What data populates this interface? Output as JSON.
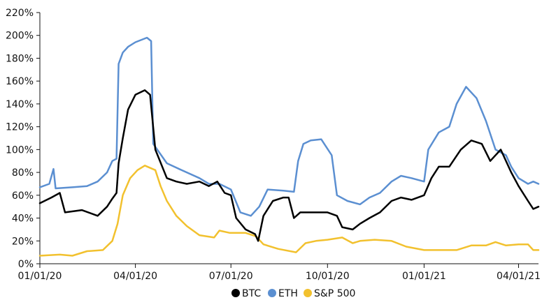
{
  "chart_data": {
    "type": "line",
    "title": "",
    "xlabel": "",
    "ylabel": "",
    "x_range": [
      "2020-01-01",
      "2021-04-20"
    ],
    "ylim": [
      0,
      220
    ],
    "y_ticks": [
      0,
      20,
      40,
      60,
      80,
      100,
      120,
      140,
      160,
      180,
      200,
      220
    ],
    "y_tick_labels": [
      "0%",
      "20%",
      "40%",
      "60%",
      "80%",
      "100%",
      "120%",
      "140%",
      "160%",
      "180%",
      "200%",
      "220%"
    ],
    "x_ticks": [
      "2020-01-01",
      "2020-04-01",
      "2020-07-01",
      "2020-10-01",
      "2021-01-01",
      "2021-04-01"
    ],
    "x_tick_labels": [
      "01/01/20",
      "04/01/20",
      "07/01/20",
      "10/01/20",
      "01/01/21",
      "04/01/21"
    ],
    "grid": false,
    "legend_position": "bottom-center",
    "series": [
      {
        "name": "BTC",
        "color": "#000000",
        "points": [
          [
            "2020-01-01",
            53
          ],
          [
            "2020-01-12",
            58
          ],
          [
            "2020-01-20",
            62
          ],
          [
            "2020-01-25",
            45
          ],
          [
            "2020-02-10",
            47
          ],
          [
            "2020-02-25",
            42
          ],
          [
            "2020-03-05",
            50
          ],
          [
            "2020-03-10",
            57
          ],
          [
            "2020-03-14",
            62
          ],
          [
            "2020-03-16",
            88
          ],
          [
            "2020-03-20",
            110
          ],
          [
            "2020-03-25",
            135
          ],
          [
            "2020-04-01",
            148
          ],
          [
            "2020-04-10",
            152
          ],
          [
            "2020-04-15",
            148
          ],
          [
            "2020-04-20",
            100
          ],
          [
            "2020-05-01",
            75
          ],
          [
            "2020-05-10",
            72
          ],
          [
            "2020-05-20",
            70
          ],
          [
            "2020-06-01",
            72
          ],
          [
            "2020-06-10",
            68
          ],
          [
            "2020-06-18",
            72
          ],
          [
            "2020-06-25",
            62
          ],
          [
            "2020-07-01",
            60
          ],
          [
            "2020-07-06",
            40
          ],
          [
            "2020-07-15",
            30
          ],
          [
            "2020-07-24",
            26
          ],
          [
            "2020-07-27",
            20
          ],
          [
            "2020-08-01",
            42
          ],
          [
            "2020-08-10",
            55
          ],
          [
            "2020-08-20",
            58
          ],
          [
            "2020-08-25",
            58
          ],
          [
            "2020-08-30",
            40
          ],
          [
            "2020-09-05",
            45
          ],
          [
            "2020-09-20",
            45
          ],
          [
            "2020-10-01",
            45
          ],
          [
            "2020-10-10",
            42
          ],
          [
            "2020-10-15",
            32
          ],
          [
            "2020-10-25",
            30
          ],
          [
            "2020-11-01",
            35
          ],
          [
            "2020-11-10",
            40
          ],
          [
            "2020-11-20",
            45
          ],
          [
            "2020-12-01",
            55
          ],
          [
            "2020-12-10",
            58
          ],
          [
            "2020-12-20",
            56
          ],
          [
            "2021-01-01",
            60
          ],
          [
            "2021-01-08",
            75
          ],
          [
            "2021-01-15",
            85
          ],
          [
            "2021-01-25",
            85
          ],
          [
            "2021-02-05",
            100
          ],
          [
            "2021-02-15",
            108
          ],
          [
            "2021-02-25",
            105
          ],
          [
            "2021-03-05",
            90
          ],
          [
            "2021-03-15",
            100
          ],
          [
            "2021-03-25",
            80
          ],
          [
            "2021-04-01",
            68
          ],
          [
            "2021-04-10",
            55
          ],
          [
            "2021-04-15",
            48
          ],
          [
            "2021-04-20",
            50
          ]
        ]
      },
      {
        "name": "ETH",
        "color": "#5b8fd1",
        "points": [
          [
            "2020-01-01",
            67
          ],
          [
            "2020-01-10",
            70
          ],
          [
            "2020-01-14",
            83
          ],
          [
            "2020-01-16",
            66
          ],
          [
            "2020-02-01",
            67
          ],
          [
            "2020-02-15",
            68
          ],
          [
            "2020-02-25",
            72
          ],
          [
            "2020-03-05",
            80
          ],
          [
            "2020-03-10",
            90
          ],
          [
            "2020-03-14",
            92
          ],
          [
            "2020-03-16",
            175
          ],
          [
            "2020-03-20",
            185
          ],
          [
            "2020-03-25",
            190
          ],
          [
            "2020-04-01",
            194
          ],
          [
            "2020-04-12",
            198
          ],
          [
            "2020-04-16",
            195
          ],
          [
            "2020-04-18",
            105
          ],
          [
            "2020-05-01",
            88
          ],
          [
            "2020-05-15",
            82
          ],
          [
            "2020-06-01",
            75
          ],
          [
            "2020-06-10",
            70
          ],
          [
            "2020-06-20",
            70
          ],
          [
            "2020-07-01",
            65
          ],
          [
            "2020-07-10",
            45
          ],
          [
            "2020-07-20",
            42
          ],
          [
            "2020-07-28",
            50
          ],
          [
            "2020-08-05",
            65
          ],
          [
            "2020-08-20",
            64
          ],
          [
            "2020-08-30",
            63
          ],
          [
            "2020-09-03",
            90
          ],
          [
            "2020-09-08",
            105
          ],
          [
            "2020-09-15",
            108
          ],
          [
            "2020-09-25",
            109
          ],
          [
            "2020-10-05",
            95
          ],
          [
            "2020-10-10",
            60
          ],
          [
            "2020-10-20",
            55
          ],
          [
            "2020-11-01",
            52
          ],
          [
            "2020-11-10",
            58
          ],
          [
            "2020-11-20",
            62
          ],
          [
            "2020-12-01",
            72
          ],
          [
            "2020-12-10",
            77
          ],
          [
            "2020-12-20",
            75
          ],
          [
            "2021-01-01",
            72
          ],
          [
            "2021-01-05",
            100
          ],
          [
            "2021-01-15",
            115
          ],
          [
            "2021-01-25",
            120
          ],
          [
            "2021-02-01",
            140
          ],
          [
            "2021-02-10",
            155
          ],
          [
            "2021-02-20",
            145
          ],
          [
            "2021-03-01",
            125
          ],
          [
            "2021-03-10",
            100
          ],
          [
            "2021-03-20",
            95
          ],
          [
            "2021-03-25",
            85
          ],
          [
            "2021-04-01",
            75
          ],
          [
            "2021-04-10",
            70
          ],
          [
            "2021-04-15",
            72
          ],
          [
            "2021-04-20",
            70
          ]
        ]
      },
      {
        "name": "S&P 500",
        "color": "#f2c12e",
        "points": [
          [
            "2020-01-01",
            7
          ],
          [
            "2020-01-20",
            8
          ],
          [
            "2020-02-01",
            7
          ],
          [
            "2020-02-15",
            11
          ],
          [
            "2020-03-01",
            12
          ],
          [
            "2020-03-10",
            20
          ],
          [
            "2020-03-15",
            35
          ],
          [
            "2020-03-20",
            60
          ],
          [
            "2020-03-27",
            75
          ],
          [
            "2020-04-03",
            82
          ],
          [
            "2020-04-10",
            86
          ],
          [
            "2020-04-20",
            82
          ],
          [
            "2020-04-25",
            68
          ],
          [
            "2020-05-01",
            55
          ],
          [
            "2020-05-10",
            42
          ],
          [
            "2020-05-20",
            33
          ],
          [
            "2020-06-01",
            25
          ],
          [
            "2020-06-15",
            23
          ],
          [
            "2020-06-20",
            29
          ],
          [
            "2020-06-30",
            27
          ],
          [
            "2020-07-15",
            27
          ],
          [
            "2020-07-25",
            24
          ],
          [
            "2020-08-01",
            17
          ],
          [
            "2020-08-15",
            13
          ],
          [
            "2020-09-01",
            10
          ],
          [
            "2020-09-10",
            18
          ],
          [
            "2020-09-20",
            20
          ],
          [
            "2020-10-01",
            21
          ],
          [
            "2020-10-15",
            23
          ],
          [
            "2020-10-25",
            18
          ],
          [
            "2020-11-01",
            20
          ],
          [
            "2020-11-15",
            21
          ],
          [
            "2020-12-01",
            20
          ],
          [
            "2020-12-15",
            15
          ],
          [
            "2021-01-01",
            12
          ],
          [
            "2021-01-15",
            12
          ],
          [
            "2021-02-01",
            12
          ],
          [
            "2021-02-15",
            16
          ],
          [
            "2021-03-01",
            16
          ],
          [
            "2021-03-10",
            19
          ],
          [
            "2021-03-20",
            16
          ],
          [
            "2021-04-01",
            17
          ],
          [
            "2021-04-10",
            17
          ],
          [
            "2021-04-15",
            12
          ],
          [
            "2021-04-20",
            12
          ]
        ]
      }
    ]
  }
}
